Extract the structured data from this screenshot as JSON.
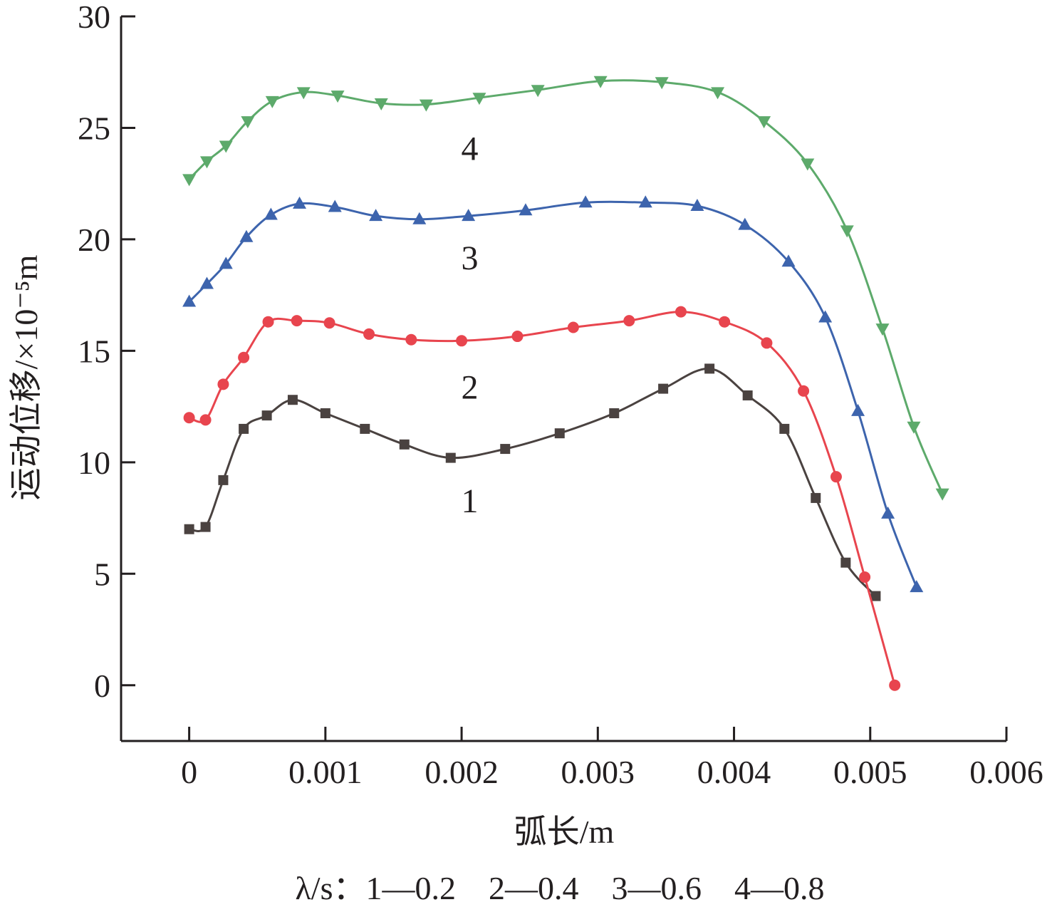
{
  "chart_data": {
    "type": "line",
    "xlabel": "弧长/m",
    "ylabel": "运动位移/×10⁻⁵m",
    "xlim": [
      -0.0005,
      0.006
    ],
    "ylim": [
      -2.5,
      30
    ],
    "x_ticks": [
      0,
      0.001,
      0.002,
      0.003,
      0.004,
      0.005,
      0.006
    ],
    "x_tick_labels": [
      "0",
      "0.001",
      "0.002",
      "0.003",
      "0.004",
      "0.005",
      "0.006"
    ],
    "y_ticks": [
      0,
      5,
      10,
      15,
      20,
      25,
      30
    ],
    "y_tick_labels": [
      "0",
      "5",
      "10",
      "15",
      "20",
      "25",
      "30"
    ],
    "grid": false,
    "legend": "λ/s：1—0.2　2—0.4　3—0.6　4—0.8",
    "series": [
      {
        "name": "1",
        "color": "#4a4240",
        "marker": "square",
        "label_at": [
          0.00206,
          8.3
        ],
        "points": [
          [
            0,
            7.0
          ],
          [
            0.00012,
            7.1
          ],
          [
            0.00025,
            9.2
          ],
          [
            0.0004,
            11.5
          ],
          [
            0.00057,
            12.1
          ],
          [
            0.00076,
            12.8
          ],
          [
            0.001,
            12.2
          ],
          [
            0.00129,
            11.5
          ],
          [
            0.00158,
            10.8
          ],
          [
            0.00192,
            10.2
          ],
          [
            0.00232,
            10.6
          ],
          [
            0.00272,
            11.3
          ],
          [
            0.00312,
            12.2
          ],
          [
            0.00348,
            13.3
          ],
          [
            0.00382,
            14.2
          ],
          [
            0.0041,
            13.0
          ],
          [
            0.00437,
            11.5
          ],
          [
            0.0046,
            8.4
          ],
          [
            0.00482,
            5.5
          ],
          [
            0.00504,
            4.0
          ]
        ]
      },
      {
        "name": "2",
        "color": "#e8454e",
        "marker": "circle",
        "label_at": [
          0.00206,
          13.4
        ],
        "points": [
          [
            0,
            12.0
          ],
          [
            0.00012,
            11.9
          ],
          [
            0.00025,
            13.5
          ],
          [
            0.0004,
            14.7
          ],
          [
            0.00058,
            16.3
          ],
          [
            0.00079,
            16.35
          ],
          [
            0.00103,
            16.25
          ],
          [
            0.00132,
            15.75
          ],
          [
            0.00163,
            15.5
          ],
          [
            0.002,
            15.45
          ],
          [
            0.00241,
            15.65
          ],
          [
            0.00282,
            16.05
          ],
          [
            0.00323,
            16.35
          ],
          [
            0.00361,
            16.75
          ],
          [
            0.00393,
            16.3
          ],
          [
            0.00424,
            15.35
          ],
          [
            0.00451,
            13.2
          ],
          [
            0.00475,
            9.35
          ],
          [
            0.00496,
            4.85
          ],
          [
            0.00518,
            0.0
          ]
        ]
      },
      {
        "name": "3",
        "color": "#3d64ad",
        "marker": "triangle-up",
        "label_at": [
          0.00206,
          19.2
        ],
        "points": [
          [
            0,
            17.2
          ],
          [
            0.00013,
            18.0
          ],
          [
            0.00027,
            18.9
          ],
          [
            0.00042,
            20.1
          ],
          [
            0.0006,
            21.1
          ],
          [
            0.00081,
            21.6
          ],
          [
            0.00107,
            21.45
          ],
          [
            0.00137,
            21.05
          ],
          [
            0.00169,
            20.9
          ],
          [
            0.00205,
            21.05
          ],
          [
            0.00247,
            21.3
          ],
          [
            0.00291,
            21.65
          ],
          [
            0.00335,
            21.65
          ],
          [
            0.00373,
            21.5
          ],
          [
            0.00408,
            20.65
          ],
          [
            0.0044,
            19.0
          ],
          [
            0.00467,
            16.5
          ],
          [
            0.00491,
            12.3
          ],
          [
            0.00513,
            7.7
          ],
          [
            0.00534,
            4.4
          ]
        ]
      },
      {
        "name": "4",
        "color": "#5daa6b",
        "marker": "triangle-down",
        "label_at": [
          0.00206,
          24.1
        ],
        "points": [
          [
            0,
            22.7
          ],
          [
            0.00013,
            23.5
          ],
          [
            0.00027,
            24.2
          ],
          [
            0.00043,
            25.3
          ],
          [
            0.00061,
            26.2
          ],
          [
            0.00084,
            26.6
          ],
          [
            0.00109,
            26.45
          ],
          [
            0.00141,
            26.1
          ],
          [
            0.00174,
            26.05
          ],
          [
            0.00213,
            26.35
          ],
          [
            0.00256,
            26.7
          ],
          [
            0.00302,
            27.1
          ],
          [
            0.00347,
            27.05
          ],
          [
            0.00388,
            26.6
          ],
          [
            0.00422,
            25.3
          ],
          [
            0.00454,
            23.4
          ],
          [
            0.00483,
            20.4
          ],
          [
            0.00509,
            16.0
          ],
          [
            0.00532,
            11.6
          ],
          [
            0.00553,
            8.6
          ]
        ]
      }
    ]
  }
}
